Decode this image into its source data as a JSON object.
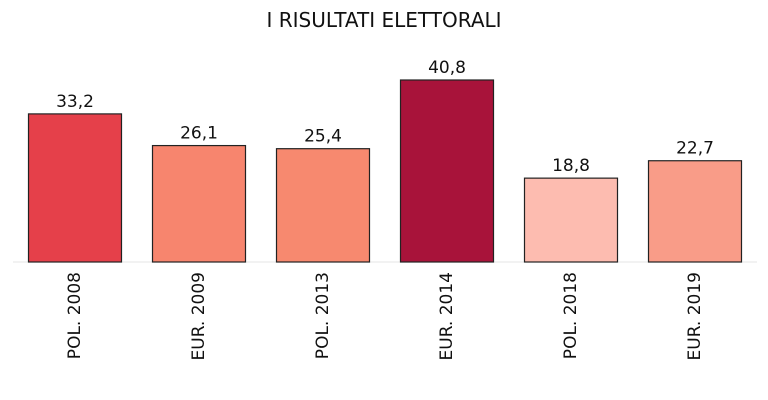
{
  "chart_data": {
    "type": "bar",
    "title": "I RISULTATI ELETTORALI",
    "categories": [
      "POL. 2008",
      "EUR. 2009",
      "POL. 2013",
      "EUR. 2014",
      "POL. 2018",
      "EUR. 2019"
    ],
    "values": [
      33.2,
      26.1,
      25.4,
      40.8,
      18.8,
      22.7
    ],
    "value_labels": [
      "33,2",
      "26,1",
      "25,4",
      "40,8",
      "18,8",
      "22,7"
    ],
    "colors": [
      "#e5404a",
      "#f7856e",
      "#f7896f",
      "#a8133a",
      "#fdbcb0",
      "#f99c88"
    ]
  }
}
